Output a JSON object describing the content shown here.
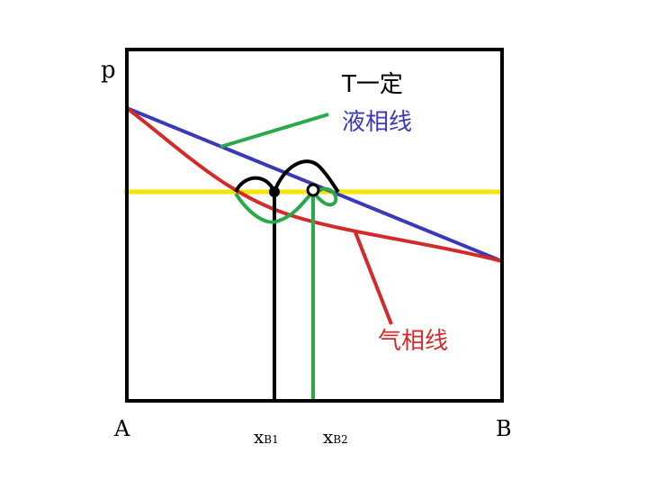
{
  "labels": {
    "p": "p",
    "t_const": "T一定",
    "liquid": "液相线",
    "vapor": "气相线",
    "a": "A",
    "b": "B",
    "xb1": {
      "x": "x",
      "sub": "B1"
    },
    "xb2": {
      "x": "x",
      "sub": "B2"
    }
  }
}
